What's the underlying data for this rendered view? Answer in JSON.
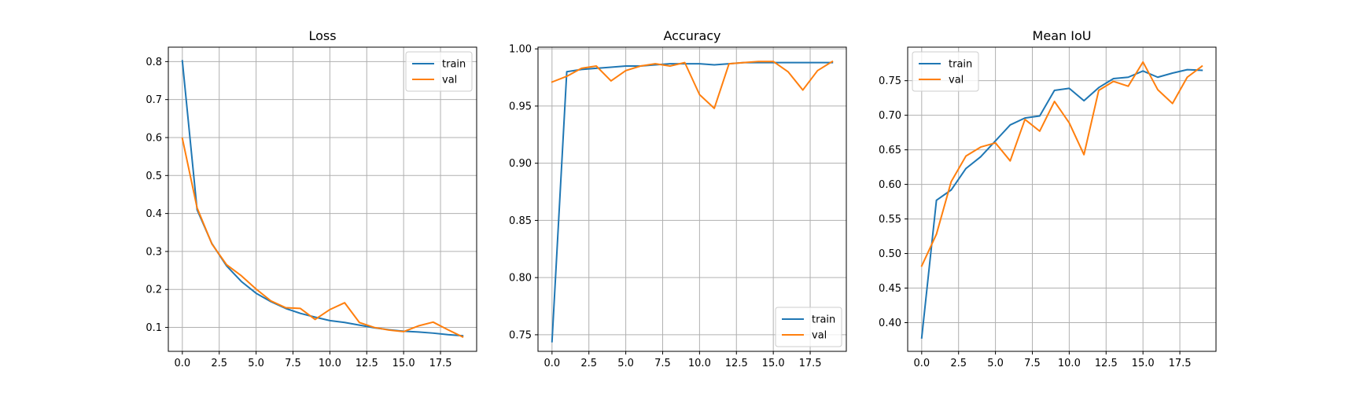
{
  "colors": {
    "train": "#1f77b4",
    "val": "#ff7f0e"
  },
  "chart_data": [
    {
      "type": "line",
      "title": "Loss",
      "xlabel": "",
      "ylabel": "",
      "grid": true,
      "legend_position": "upper right",
      "x": [
        0,
        1,
        2,
        3,
        4,
        5,
        6,
        7,
        8,
        9,
        10,
        11,
        12,
        13,
        14,
        15,
        16,
        17,
        18,
        19
      ],
      "xlim": [
        -0.95,
        19.95
      ],
      "ylim": [
        0.037,
        0.838
      ],
      "xticks": [
        0.0,
        2.5,
        5.0,
        7.5,
        10.0,
        12.5,
        15.0,
        17.5
      ],
      "xtick_labels": [
        "0.0",
        "2.5",
        "5.0",
        "7.5",
        "10.0",
        "12.5",
        "15.0",
        "17.5"
      ],
      "yticks": [
        0.1,
        0.2,
        0.3,
        0.4,
        0.5,
        0.6,
        0.7,
        0.8
      ],
      "ytick_labels": [
        "0.1",
        "0.2",
        "0.3",
        "0.4",
        "0.5",
        "0.6",
        "0.7",
        "0.8"
      ],
      "series": [
        {
          "name": "train",
          "values": [
            0.802,
            0.41,
            0.321,
            0.262,
            0.221,
            0.19,
            0.168,
            0.15,
            0.137,
            0.127,
            0.118,
            0.113,
            0.106,
            0.099,
            0.094,
            0.09,
            0.088,
            0.085,
            0.081,
            0.078
          ]
        },
        {
          "name": "val",
          "values": [
            0.598,
            0.415,
            0.32,
            0.265,
            0.236,
            0.201,
            0.17,
            0.152,
            0.15,
            0.121,
            0.147,
            0.165,
            0.113,
            0.1,
            0.093,
            0.089,
            0.104,
            0.114,
            0.094,
            0.075
          ]
        }
      ]
    },
    {
      "type": "line",
      "title": "Accuracy",
      "xlabel": "",
      "ylabel": "",
      "grid": true,
      "legend_position": "lower right",
      "x": [
        0,
        1,
        2,
        3,
        4,
        5,
        6,
        7,
        8,
        9,
        10,
        11,
        12,
        13,
        14,
        15,
        16,
        17,
        18,
        19
      ],
      "xlim": [
        -0.95,
        19.95
      ],
      "ylim": [
        0.7355,
        1.0015
      ],
      "xticks": [
        0.0,
        2.5,
        5.0,
        7.5,
        10.0,
        12.5,
        15.0,
        17.5
      ],
      "xtick_labels": [
        "0.0",
        "2.5",
        "5.0",
        "7.5",
        "10.0",
        "12.5",
        "15.0",
        "17.5"
      ],
      "yticks": [
        0.75,
        0.8,
        0.85,
        0.9,
        0.95,
        1.0
      ],
      "ytick_labels": [
        "0.75",
        "0.80",
        "0.85",
        "0.90",
        "0.95",
        "1.00"
      ],
      "series": [
        {
          "name": "train",
          "values": [
            0.744,
            0.98,
            0.982,
            0.983,
            0.984,
            0.985,
            0.985,
            0.986,
            0.987,
            0.987,
            0.987,
            0.986,
            0.987,
            0.988,
            0.988,
            0.988,
            0.988,
            0.988,
            0.988,
            0.988
          ]
        },
        {
          "name": "val",
          "values": [
            0.971,
            0.976,
            0.983,
            0.985,
            0.972,
            0.981,
            0.985,
            0.987,
            0.985,
            0.988,
            0.96,
            0.948,
            0.987,
            0.988,
            0.989,
            0.989,
            0.98,
            0.964,
            0.981,
            0.989
          ]
        }
      ]
    },
    {
      "type": "line",
      "title": "Mean IoU",
      "xlabel": "",
      "ylabel": "",
      "grid": true,
      "legend_position": "upper left",
      "x": [
        0,
        1,
        2,
        3,
        4,
        5,
        6,
        7,
        8,
        9,
        10,
        11,
        12,
        13,
        14,
        15,
        16,
        17,
        18,
        19
      ],
      "xlim": [
        -0.95,
        19.95
      ],
      "ylim": [
        0.3585,
        0.7985
      ],
      "xticks": [
        0.0,
        2.5,
        5.0,
        7.5,
        10.0,
        12.5,
        15.0,
        17.5
      ],
      "xtick_labels": [
        "0.0",
        "2.5",
        "5.0",
        "7.5",
        "10.0",
        "12.5",
        "15.0",
        "17.5"
      ],
      "yticks": [
        0.4,
        0.45,
        0.5,
        0.55,
        0.6,
        0.65,
        0.7,
        0.75
      ],
      "ytick_labels": [
        "0.40",
        "0.45",
        "0.50",
        "0.55",
        "0.60",
        "0.65",
        "0.70",
        "0.75"
      ],
      "series": [
        {
          "name": "train",
          "values": [
            0.378,
            0.577,
            0.592,
            0.623,
            0.64,
            0.663,
            0.686,
            0.696,
            0.699,
            0.736,
            0.739,
            0.721,
            0.74,
            0.753,
            0.755,
            0.764,
            0.755,
            0.761,
            0.766,
            0.765
          ]
        },
        {
          "name": "val",
          "values": [
            0.482,
            0.528,
            0.604,
            0.641,
            0.654,
            0.66,
            0.634,
            0.694,
            0.677,
            0.72,
            0.689,
            0.643,
            0.736,
            0.749,
            0.742,
            0.777,
            0.737,
            0.717,
            0.755,
            0.771
          ]
        }
      ]
    }
  ]
}
